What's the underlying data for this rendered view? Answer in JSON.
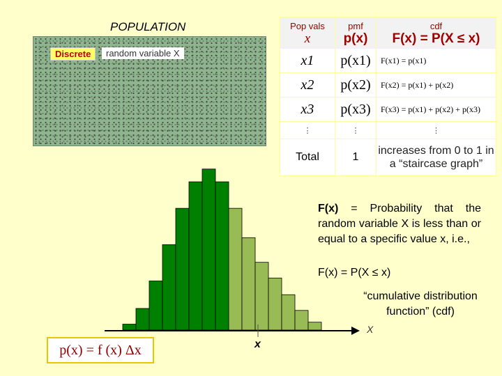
{
  "population": {
    "title": "POPULATION",
    "discrete_label": "Discrete",
    "rv_label": "random variable X"
  },
  "table": {
    "col1_small": "Pop vals",
    "col1_big": "x",
    "col2_small": "pmf",
    "col2_big": "p(x)",
    "col3_small": "cdf",
    "col3_big": "F(x) = P(X ≤ x)",
    "rows": [
      {
        "x": "x1",
        "p": "p(x1)",
        "F": "F(x1) = p(x1)"
      },
      {
        "x": "x2",
        "p": "p(x2)",
        "F": "F(x2) = p(x1) + p(x2)"
      },
      {
        "x": "x3",
        "p": "p(x3)",
        "F": "F(x3) = p(x1) + p(x2) + p(x3)"
      }
    ],
    "dots": "⋮",
    "total_label": "Total",
    "total_value": "1",
    "total_note": "increases from 0 to 1 in a “staircase graph”"
  },
  "description": {
    "lead": "F(x)",
    "line": "= Probability that the random variable X is less than or equal to a specific value x, i.e.,",
    "equation": "F(x) = P(X ≤ x)",
    "cdf_label": "“cumulative distribution function” (cdf)"
  },
  "axis": {
    "x_label": "x",
    "x_right": "X"
  },
  "formula": "p(x) = f (x) Δx",
  "colors": {
    "dark_bar": "#008000",
    "light_bar": "#99bb55",
    "background": "#ffffcc",
    "header_text": "#a00000"
  },
  "chart_data": {
    "type": "bar",
    "values": [
      0.6,
      2.2,
      5.0,
      8.7,
      12.4,
      15.1,
      16.4,
      15.1,
      12.4,
      9.4,
      6.9,
      5.3,
      3.6,
      2.0,
      0.8
    ],
    "highlight_through_index": 7
  }
}
